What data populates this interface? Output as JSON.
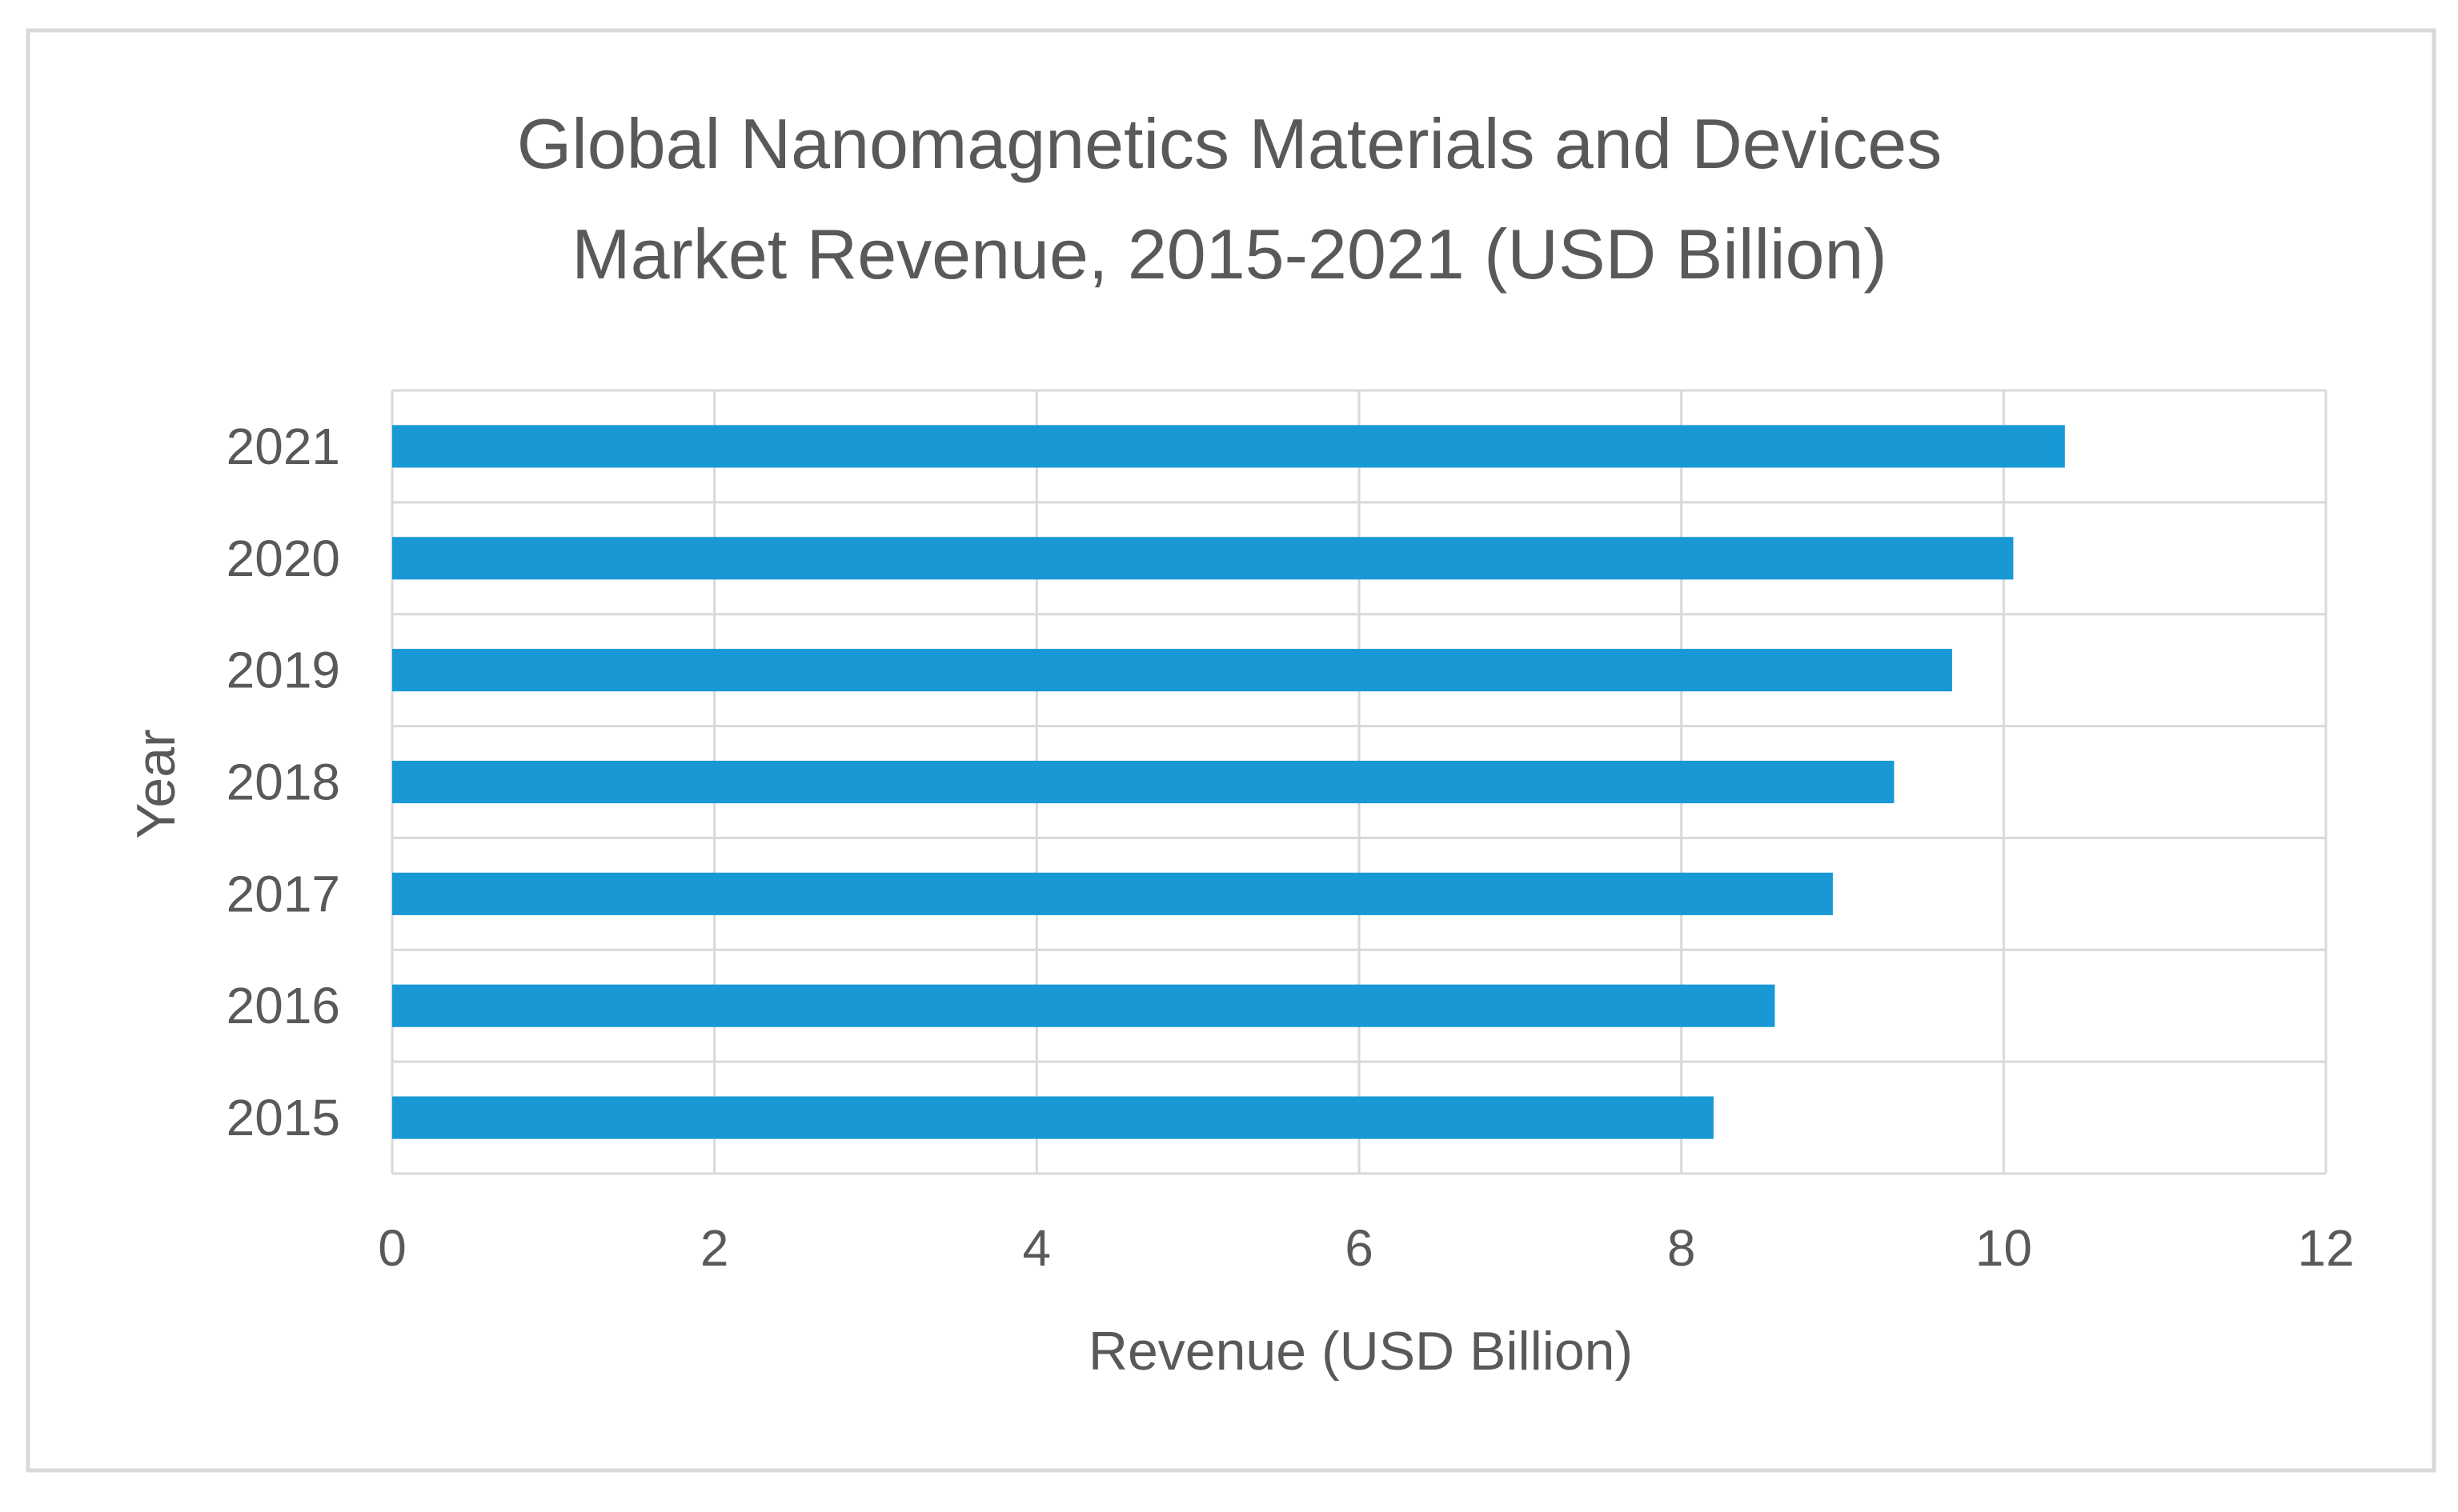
{
  "chart_data": {
    "type": "bar",
    "orientation": "horizontal",
    "title_lines": [
      "Global Nanomagnetics Materials and Devices",
      "Market Revenue, 2015-2021 (USD Billion)"
    ],
    "categories": [
      "2015",
      "2016",
      "2017",
      "2018",
      "2019",
      "2020",
      "2021"
    ],
    "values": [
      8.2,
      8.58,
      8.94,
      9.32,
      9.68,
      10.06,
      10.38
    ],
    "xlabel": "Revenue (USD Billion)",
    "ylabel": "Year",
    "xlim": [
      0,
      12
    ],
    "xticks": [
      0,
      2,
      4,
      6,
      8,
      10,
      12
    ],
    "grid": true,
    "legend": "none",
    "bar_color": "#1899d6"
  }
}
